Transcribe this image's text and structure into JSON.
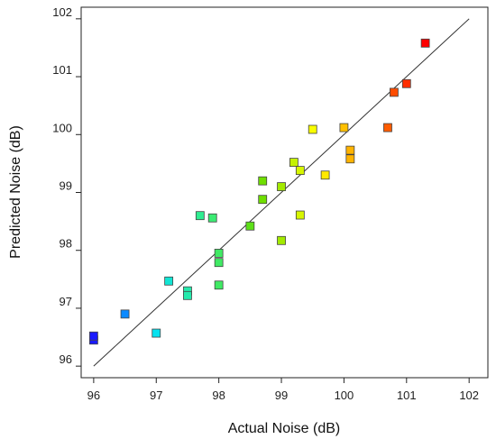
{
  "chart_data": {
    "type": "scatter",
    "title": "",
    "xlabel": "Actual Noise (dB)",
    "ylabel": "Predicted Noise (dB)",
    "xlim": [
      95.8,
      102.3
    ],
    "ylim": [
      95.8,
      102.2
    ],
    "x_ticks": [
      96,
      97,
      98,
      99,
      100,
      101,
      102
    ],
    "y_ticks": [
      96,
      97,
      98,
      99,
      100,
      101,
      102
    ],
    "x_tick_labels": [
      "96",
      "97",
      "98",
      "99",
      "100",
      "101",
      "102"
    ],
    "y_tick_labels": [
      "96",
      "97",
      "98",
      "99",
      "100",
      "101",
      "102"
    ],
    "reference_line": {
      "from": [
        96,
        96
      ],
      "to": [
        102,
        102
      ],
      "color": "#333333"
    },
    "grid": false,
    "legend": "none",
    "marker": "square",
    "color_scale": [
      "#1a1aff",
      "#00e0ff",
      "#33ee88",
      "#66dd00",
      "#ffff00",
      "#ff8800",
      "#ff0000"
    ],
    "points": [
      {
        "x": 96.0,
        "y": 96.45
      },
      {
        "x": 96.0,
        "y": 96.52
      },
      {
        "x": 96.5,
        "y": 96.9
      },
      {
        "x": 97.0,
        "y": 96.57
      },
      {
        "x": 97.2,
        "y": 97.47
      },
      {
        "x": 97.5,
        "y": 97.3
      },
      {
        "x": 97.5,
        "y": 97.22
      },
      {
        "x": 97.7,
        "y": 98.6
      },
      {
        "x": 97.9,
        "y": 98.56
      },
      {
        "x": 98.0,
        "y": 97.95
      },
      {
        "x": 98.0,
        "y": 97.79
      },
      {
        "x": 98.0,
        "y": 97.4
      },
      {
        "x": 98.5,
        "y": 98.42
      },
      {
        "x": 98.7,
        "y": 99.2
      },
      {
        "x": 98.7,
        "y": 98.88
      },
      {
        "x": 99.0,
        "y": 99.1
      },
      {
        "x": 99.0,
        "y": 98.17
      },
      {
        "x": 99.2,
        "y": 99.52
      },
      {
        "x": 99.3,
        "y": 99.38
      },
      {
        "x": 99.3,
        "y": 98.61
      },
      {
        "x": 99.5,
        "y": 100.09
      },
      {
        "x": 99.7,
        "y": 99.3
      },
      {
        "x": 100.0,
        "y": 100.12
      },
      {
        "x": 100.1,
        "y": 99.73
      },
      {
        "x": 100.1,
        "y": 99.58
      },
      {
        "x": 100.7,
        "y": 100.12
      },
      {
        "x": 100.8,
        "y": 100.73
      },
      {
        "x": 101.0,
        "y": 100.88
      },
      {
        "x": 101.3,
        "y": 101.58
      }
    ]
  }
}
